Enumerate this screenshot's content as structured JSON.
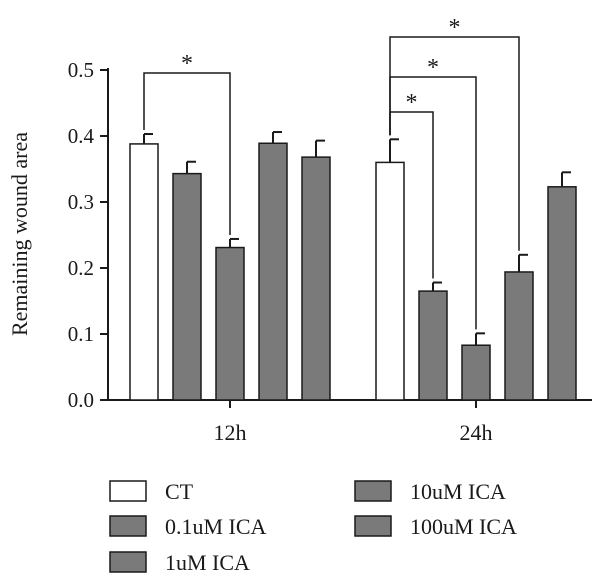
{
  "chart_data": {
    "type": "bar",
    "title": "",
    "xlabel": "",
    "ylabel": "Remaining wound area",
    "ylim": [
      0,
      0.5
    ],
    "yticks": [
      "0.0",
      "0.1",
      "0.2",
      "0.3",
      "0.4",
      "0.5"
    ],
    "categories": [
      "12h",
      "24h"
    ],
    "series": [
      {
        "name": "CT",
        "color": "#ffffff",
        "values": [
          0.388,
          0.36
        ],
        "errors": [
          0.015,
          0.035
        ]
      },
      {
        "name": "0.1uM ICA",
        "color": "#7a7a7a",
        "values": [
          0.343,
          0.165
        ],
        "errors": [
          0.018,
          0.013
        ]
      },
      {
        "name": "1uM ICA",
        "color": "#7a7a7a",
        "values": [
          0.231,
          0.083
        ],
        "errors": [
          0.013,
          0.018
        ]
      },
      {
        "name": "10uM ICA",
        "color": "#7a7a7a",
        "values": [
          0.389,
          0.194
        ],
        "errors": [
          0.017,
          0.026
        ]
      },
      {
        "name": "100uM ICA",
        "color": "#7a7a7a",
        "values": [
          0.368,
          0.323
        ],
        "errors": [
          0.025,
          0.022
        ]
      }
    ],
    "significance": [
      {
        "category": "12h",
        "from": "CT",
        "to": "1uM ICA",
        "label": "*"
      },
      {
        "category": "24h",
        "from": "CT",
        "to": "0.1uM ICA",
        "label": "*"
      },
      {
        "category": "24h",
        "from": "CT",
        "to": "1uM ICA",
        "label": "*"
      },
      {
        "category": "24h",
        "from": "CT",
        "to": "10uM ICA",
        "label": "*"
      }
    ],
    "grid": false,
    "legend_position": "bottom"
  }
}
